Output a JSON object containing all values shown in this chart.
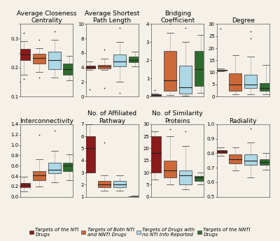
{
  "colors": {
    "dark_red": "#8B1A1A",
    "orange_brown": "#CD6839",
    "light_blue": "#ADD8E6",
    "dark_green": "#2E6B2E"
  },
  "legend": [
    {
      "label": "Targets of the NTI\nDrugs",
      "color": "#8B1A1A"
    },
    {
      "label": "Targets of Both NTI\nand NNTI Drugs",
      "color": "#CD6839"
    },
    {
      "label": "Targets of Drugs with\nno NTI Info Reported",
      "color": "#ADD8E6"
    },
    {
      "label": "Targets of the NNTI\nDrugs",
      "color": "#2E6B2E"
    }
  ],
  "plots": [
    {
      "title": "Average Closeness\nCentrality",
      "ylim": [
        0.1,
        0.35
      ],
      "yticks": [
        0.1,
        0.15,
        0.2,
        0.25,
        0.3,
        0.35
      ],
      "yticklabels": [
        "0.1",
        "",
        "0.2",
        "",
        "0.3",
        ""
      ],
      "boxes": [
        {
          "whislo": 0.175,
          "q1": 0.225,
          "med": 0.245,
          "q3": 0.265,
          "whishi": 0.29,
          "fliers_low": [
            0.16
          ],
          "fliers_high": [
            0.32
          ]
        },
        {
          "whislo": 0.185,
          "q1": 0.215,
          "med": 0.232,
          "q3": 0.248,
          "whishi": 0.268,
          "fliers_low": [
            0.165
          ],
          "fliers_high": [
            0.295
          ]
        },
        {
          "whislo": 0.165,
          "q1": 0.195,
          "med": 0.225,
          "q3": 0.255,
          "whishi": 0.295,
          "fliers_low": [],
          "fliers_high": [
            0.325
          ]
        },
        {
          "whislo": 0.155,
          "q1": 0.175,
          "med": 0.195,
          "q3": 0.215,
          "whishi": 0.24,
          "fliers_low": [],
          "fliers_high": []
        }
      ]
    },
    {
      "title": "Average Shortest\nPath Length",
      "ylim": [
        0,
        10
      ],
      "yticks": [
        0,
        2,
        4,
        6,
        8,
        10
      ],
      "yticklabels": [
        "0",
        "2",
        "4",
        "6",
        "8",
        "10"
      ],
      "boxes": [
        {
          "whislo": 3.7,
          "q1": 3.9,
          "med": 4.1,
          "q3": 4.3,
          "whishi": 4.8,
          "fliers_low": [
            1.0
          ],
          "fliers_high": []
        },
        {
          "whislo": 3.7,
          "q1": 3.9,
          "med": 4.15,
          "q3": 4.4,
          "whishi": 5.2,
          "fliers_low": [
            1.2
          ],
          "fliers_high": [
            6.5
          ]
        },
        {
          "whislo": 2.0,
          "q1": 4.2,
          "med": 4.8,
          "q3": 5.8,
          "whishi": 7.5,
          "fliers_low": [
            0.5
          ],
          "fliers_high": [
            9.5
          ]
        },
        {
          "whislo": 4.2,
          "q1": 4.7,
          "med": 5.0,
          "q3": 5.5,
          "whishi": 6.2,
          "fliers_low": [],
          "fliers_high": []
        }
      ]
    },
    {
      "title": "Bridging\nCoefficient",
      "ylim": [
        0,
        4
      ],
      "yticks": [
        0,
        1,
        2,
        3,
        4
      ],
      "yticklabels": [
        "0",
        "1",
        "2",
        "3",
        "4"
      ],
      "boxes": [
        {
          "whislo": 0.02,
          "q1": 0.04,
          "med": 0.07,
          "q3": 0.12,
          "whishi": 0.18,
          "fliers_low": [],
          "fliers_high": [
            0.35
          ]
        },
        {
          "whislo": 0.1,
          "q1": 0.3,
          "med": 0.9,
          "q3": 2.5,
          "whishi": 3.5,
          "fliers_low": [],
          "fliers_high": [
            4.0
          ]
        },
        {
          "whislo": 0.05,
          "q1": 0.15,
          "med": 0.5,
          "q3": 1.7,
          "whishi": 3.0,
          "fliers_low": [],
          "fliers_high": [
            3.8
          ]
        },
        {
          "whislo": 0.2,
          "q1": 0.6,
          "med": 1.5,
          "q3": 2.5,
          "whishi": 3.4,
          "fliers_low": [],
          "fliers_high": []
        }
      ]
    },
    {
      "title": "Degree",
      "ylim": [
        0,
        30
      ],
      "yticks": [
        0,
        5,
        10,
        15,
        20,
        25,
        30
      ],
      "yticklabels": [
        "0",
        "5",
        "10",
        "15",
        "20",
        "25",
        "30"
      ],
      "boxes": [
        {
          "whislo": 10.5,
          "q1": 10.8,
          "med": 11.0,
          "q3": 11.2,
          "whishi": 11.5,
          "fliers_low": [],
          "fliers_high": [
            28
          ]
        },
        {
          "whislo": 1.0,
          "q1": 2.5,
          "med": 5.0,
          "q3": 9.5,
          "whishi": 17.0,
          "fliers_low": [],
          "fliers_high": []
        },
        {
          "whislo": 1.0,
          "q1": 3.5,
          "med": 5.0,
          "q3": 9.0,
          "whishi": 16.5,
          "fliers_low": [],
          "fliers_high": [
            24,
            27
          ]
        },
        {
          "whislo": 1.0,
          "q1": 2.5,
          "med": 3.5,
          "q3": 5.5,
          "whishi": 13.0,
          "fliers_low": [],
          "fliers_high": []
        }
      ]
    },
    {
      "title": "Interconnectivity",
      "ylim": [
        0.0,
        1.4
      ],
      "yticks": [
        0.0,
        0.2,
        0.4,
        0.6,
        0.8,
        1.0,
        1.2,
        1.4
      ],
      "yticklabels": [
        "0.0",
        "0.2",
        "0.4",
        "0.6",
        "0.8",
        "1.0",
        "1.2",
        "1.4"
      ],
      "boxes": [
        {
          "whislo": 0.1,
          "q1": 0.18,
          "med": 0.22,
          "q3": 0.27,
          "whishi": 0.38,
          "fliers_low": [],
          "fliers_high": []
        },
        {
          "whislo": 0.2,
          "q1": 0.32,
          "med": 0.42,
          "q3": 0.5,
          "whishi": 0.72,
          "fliers_low": [],
          "fliers_high": [
            1.2
          ]
        },
        {
          "whislo": 0.28,
          "q1": 0.45,
          "med": 0.52,
          "q3": 0.65,
          "whishi": 0.88,
          "fliers_low": [],
          "fliers_high": [
            1.28
          ]
        },
        {
          "whislo": 0.32,
          "q1": 0.5,
          "med": 0.6,
          "q3": 0.65,
          "whishi": 0.82,
          "fliers_low": [],
          "fliers_high": []
        }
      ]
    },
    {
      "title": "No. of Affiliated\nPathway",
      "ylim": [
        1,
        7
      ],
      "yticks": [
        1,
        2,
        3,
        4,
        5,
        6,
        7
      ],
      "yticklabels": [
        "1",
        "2",
        "3",
        "4",
        "5",
        "6",
        "7"
      ],
      "boxes": [
        {
          "whislo": 3.0,
          "q1": 3.0,
          "med": 5.0,
          "q3": 6.0,
          "whishi": 7.0,
          "fliers_low": [],
          "fliers_high": []
        },
        {
          "whislo": 1.5,
          "q1": 1.8,
          "med": 2.0,
          "q3": 2.3,
          "whishi": 2.8,
          "fliers_low": [],
          "fliers_high": [
            5.5
          ]
        },
        {
          "whislo": 1.5,
          "q1": 1.8,
          "med": 2.0,
          "q3": 2.3,
          "whishi": 2.8,
          "fliers_low": [],
          "fliers_high": []
        },
        {
          "whislo": 1.0,
          "q1": 1.0,
          "med": 1.0,
          "q3": 1.05,
          "whishi": 1.1,
          "fliers_low": [],
          "fliers_high": []
        }
      ]
    },
    {
      "title": "No. of Similarity\nProteins",
      "ylim": [
        0,
        30
      ],
      "yticks": [
        0,
        5,
        10,
        15,
        20,
        25,
        30
      ],
      "yticklabels": [
        "0",
        "5",
        "10",
        "15",
        "20",
        "25",
        "30"
      ],
      "boxes": [
        {
          "whislo": 7.0,
          "q1": 10.0,
          "med": 18.0,
          "q3": 25.0,
          "whishi": 27.0,
          "fliers_low": [],
          "fliers_high": []
        },
        {
          "whislo": 5.0,
          "q1": 8.0,
          "med": 11.0,
          "q3": 15.0,
          "whishi": 25.0,
          "fliers_low": [],
          "fliers_high": [
            28
          ]
        },
        {
          "whislo": 3.0,
          "q1": 5.0,
          "med": 9.0,
          "q3": 11.0,
          "whishi": 21.0,
          "fliers_low": [],
          "fliers_high": [
            27
          ]
        },
        {
          "whislo": 5.0,
          "q1": 6.5,
          "med": 8.0,
          "q3": 8.5,
          "whishi": 10.0,
          "fliers_low": [],
          "fliers_high": []
        }
      ]
    },
    {
      "title": "Radiality",
      "ylim": [
        0.5,
        1.0
      ],
      "yticks": [
        0.5,
        0.6,
        0.7,
        0.8,
        0.9,
        1.0
      ],
      "yticklabels": [
        "0.5",
        "0.6",
        "0.7",
        "0.8",
        "0.9",
        "1.0"
      ],
      "boxes": [
        {
          "whislo": 0.785,
          "q1": 0.8,
          "med": 0.81,
          "q3": 0.82,
          "whishi": 0.84,
          "fliers_low": [],
          "fliers_high": []
        },
        {
          "whislo": 0.68,
          "q1": 0.73,
          "med": 0.76,
          "q3": 0.79,
          "whishi": 0.84,
          "fliers_low": [],
          "fliers_high": []
        },
        {
          "whislo": 0.635,
          "q1": 0.72,
          "med": 0.75,
          "q3": 0.79,
          "whishi": 0.875,
          "fliers_low": [],
          "fliers_high": [
            0.97
          ]
        },
        {
          "whislo": 0.685,
          "q1": 0.72,
          "med": 0.74,
          "q3": 0.76,
          "whishi": 0.8,
          "fliers_low": [],
          "fliers_high": []
        }
      ]
    }
  ],
  "subplot_titles_fontsize": 6.5,
  "tick_fontsize": 5,
  "legend_fontsize": 5,
  "background_color": "#f5f0e8"
}
